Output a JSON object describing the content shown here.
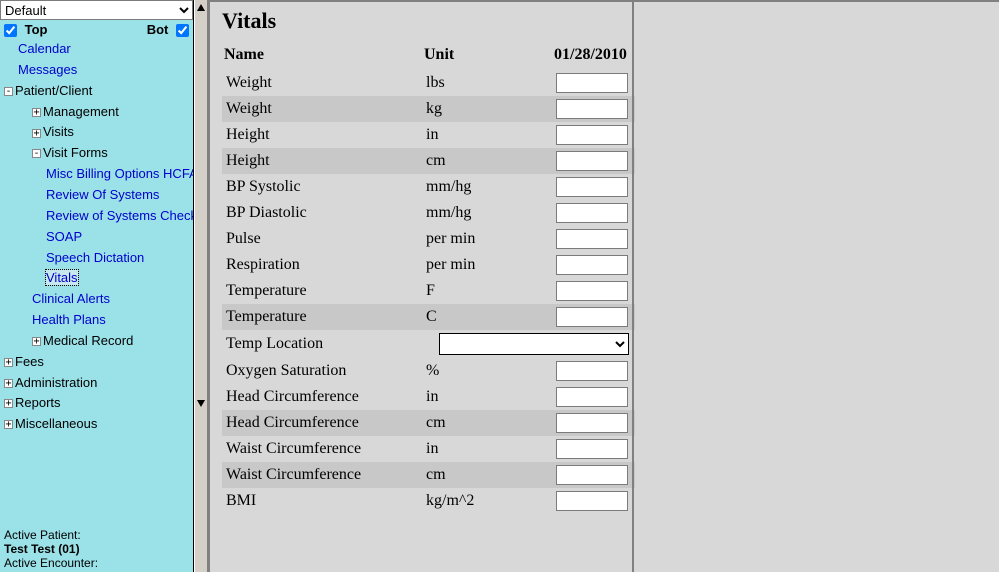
{
  "sidebar": {
    "dropdown_value": "Default",
    "top_label": "Top",
    "bot_label": "Bot",
    "top_checked": true,
    "bot_checked": true,
    "tree": [
      {
        "label": "Calendar",
        "indent": 1,
        "link": true,
        "expander": null
      },
      {
        "label": "Messages",
        "indent": 1,
        "link": true,
        "expander": null
      },
      {
        "label": "Patient/Client",
        "indent": 0,
        "link": false,
        "expander": "-"
      },
      {
        "label": "Management",
        "indent": 2,
        "link": false,
        "expander": "+"
      },
      {
        "label": "Visits",
        "indent": 2,
        "link": false,
        "expander": "+"
      },
      {
        "label": "Visit Forms",
        "indent": 2,
        "link": false,
        "expander": "-"
      },
      {
        "label": "Misc Billing Options HCFA",
        "indent": 3,
        "link": true,
        "expander": null
      },
      {
        "label": "Review Of Systems",
        "indent": 3,
        "link": true,
        "expander": null
      },
      {
        "label": "Review of Systems Checks",
        "indent": 3,
        "link": true,
        "expander": null
      },
      {
        "label": "SOAP",
        "indent": 3,
        "link": true,
        "expander": null
      },
      {
        "label": "Speech Dictation",
        "indent": 3,
        "link": true,
        "expander": null
      },
      {
        "label": "Vitals",
        "indent": 3,
        "link": true,
        "expander": null,
        "selected": true
      },
      {
        "label": "Clinical Alerts",
        "indent": 2,
        "link": true,
        "expander": null
      },
      {
        "label": "Health Plans",
        "indent": 2,
        "link": true,
        "expander": null
      },
      {
        "label": "Medical Record",
        "indent": 2,
        "link": false,
        "expander": "+"
      },
      {
        "label": "Fees",
        "indent": 0,
        "link": false,
        "expander": "+"
      },
      {
        "label": "Administration",
        "indent": 0,
        "link": false,
        "expander": "+"
      },
      {
        "label": "Reports",
        "indent": 0,
        "link": false,
        "expander": "+"
      },
      {
        "label": "Miscellaneous",
        "indent": 0,
        "link": false,
        "expander": "+"
      }
    ],
    "active_patient_label": "Active Patient:",
    "active_patient_value": "Test Test (01)",
    "active_encounter_label": "Active Encounter:"
  },
  "main": {
    "title": "Vitals",
    "columns": {
      "name": "Name",
      "unit": "Unit",
      "date": "01/28/2010"
    },
    "rows": [
      {
        "name": "Weight",
        "unit": "lbs",
        "input": "text",
        "alt": false
      },
      {
        "name": "Weight",
        "unit": "kg",
        "input": "text",
        "alt": true
      },
      {
        "name": "Height",
        "unit": "in",
        "input": "text",
        "alt": false
      },
      {
        "name": "Height",
        "unit": "cm",
        "input": "text",
        "alt": true
      },
      {
        "name": "BP Systolic",
        "unit": "mm/hg",
        "input": "text",
        "alt": false
      },
      {
        "name": "BP Diastolic",
        "unit": "mm/hg",
        "input": "text",
        "alt": false
      },
      {
        "name": "Pulse",
        "unit": "per min",
        "input": "text",
        "alt": false
      },
      {
        "name": "Respiration",
        "unit": "per min",
        "input": "text",
        "alt": false
      },
      {
        "name": "Temperature",
        "unit": "F",
        "input": "text",
        "alt": false
      },
      {
        "name": "Temperature",
        "unit": "C",
        "input": "text",
        "alt": true
      },
      {
        "name": "Temp Location",
        "unit": "",
        "input": "select",
        "alt": false
      },
      {
        "name": "Oxygen Saturation",
        "unit": "%",
        "input": "text",
        "alt": false
      },
      {
        "name": "Head Circumference",
        "unit": "in",
        "input": "text",
        "alt": false
      },
      {
        "name": "Head Circumference",
        "unit": "cm",
        "input": "text",
        "alt": true
      },
      {
        "name": "Waist Circumference",
        "unit": "in",
        "input": "text",
        "alt": false
      },
      {
        "name": "Waist Circumference",
        "unit": "cm",
        "input": "text",
        "alt": true
      },
      {
        "name": "BMI",
        "unit": "kg/m^2",
        "input": "text",
        "alt": false
      }
    ]
  }
}
